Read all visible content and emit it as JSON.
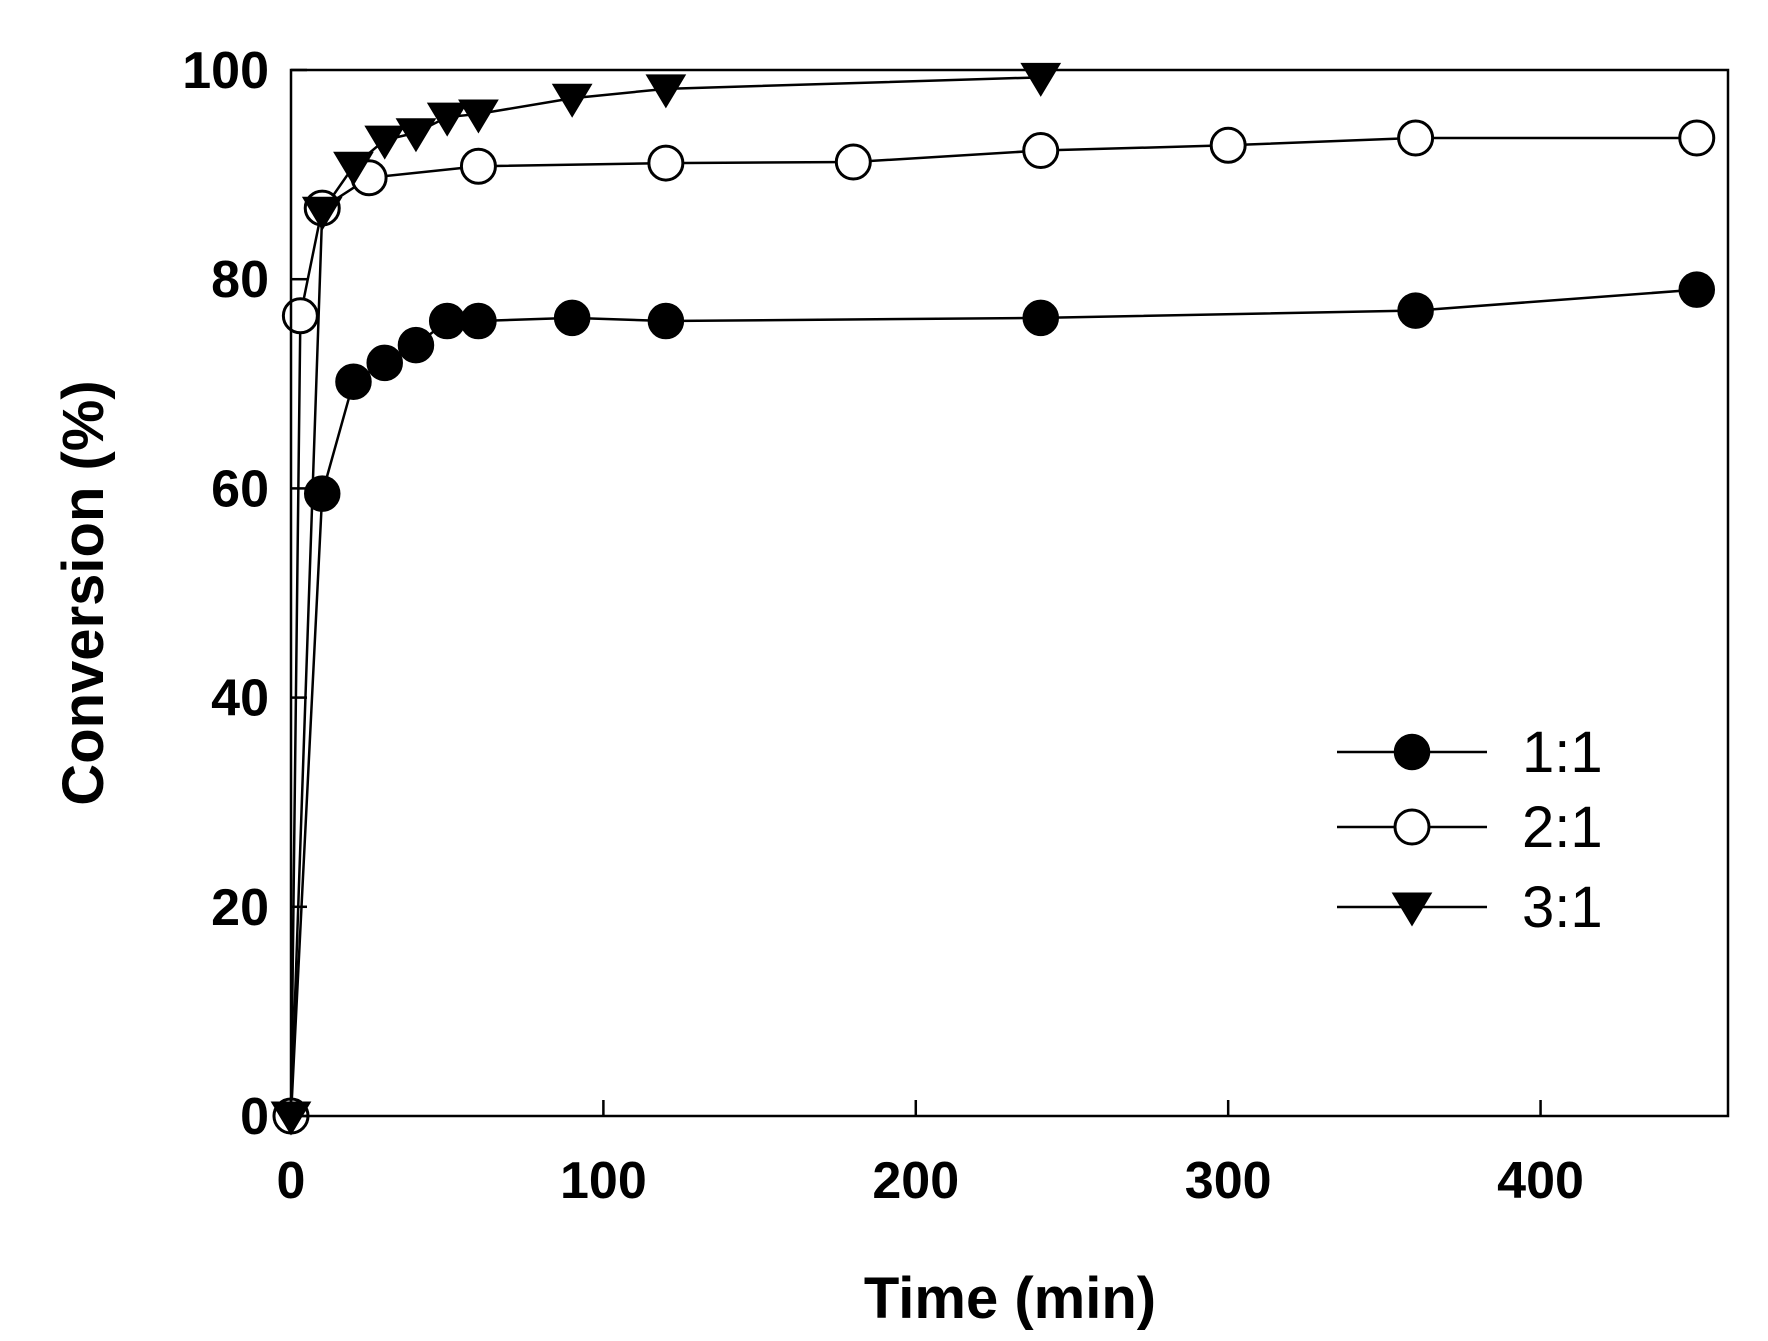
{
  "chart_data": {
    "type": "line",
    "title": "",
    "xlabel": "Time (min)",
    "ylabel": "Conversion (%)",
    "xlim": [
      0,
      460
    ],
    "ylim": [
      0,
      100
    ],
    "xticks": [
      0,
      100,
      200,
      300,
      400
    ],
    "yticks": [
      0,
      20,
      40,
      60,
      80,
      100
    ],
    "legend_position": "lower-right",
    "grid": false,
    "colors": {
      "line": "#000000",
      "axis": "#000000",
      "background": "#ffffff"
    },
    "series": [
      {
        "name": "1:1",
        "marker": "filled-circle",
        "x": [
          0,
          10,
          20,
          30,
          40,
          50,
          60,
          90,
          120,
          240,
          360,
          450
        ],
        "y": [
          0,
          59.5,
          70.2,
          72.0,
          73.7,
          76.0,
          76.0,
          76.3,
          76.0,
          76.3,
          77.0,
          79.0
        ]
      },
      {
        "name": "2:1",
        "marker": "open-circle",
        "x": [
          0,
          3,
          10,
          25,
          60,
          120,
          180,
          240,
          300,
          360,
          450
        ],
        "y": [
          0,
          76.5,
          86.8,
          89.7,
          90.8,
          91.1,
          91.2,
          92.3,
          92.8,
          93.5,
          93.5
        ]
      },
      {
        "name": "3:1",
        "marker": "filled-triangle-down",
        "x": [
          0,
          10,
          20,
          30,
          40,
          50,
          60,
          90,
          120,
          240
        ],
        "y": [
          0,
          86.5,
          90.8,
          93.3,
          94.0,
          95.5,
          95.8,
          97.3,
          98.2,
          99.3
        ]
      }
    ]
  }
}
